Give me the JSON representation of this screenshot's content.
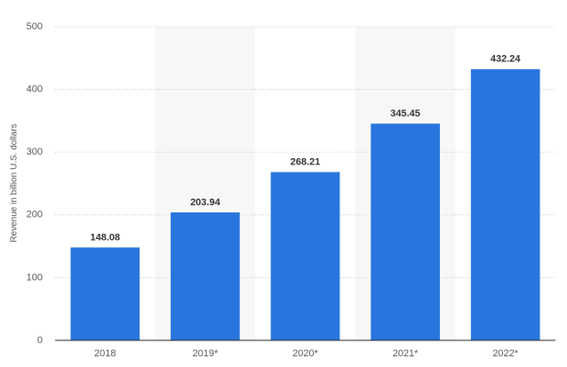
{
  "chart_data": {
    "type": "bar",
    "y_label": "Revenue in billion U.S. dollars",
    "categories": [
      "2018",
      "2019*",
      "2020*",
      "2021*",
      "2022*"
    ],
    "values": [
      148.08,
      203.94,
      268.21,
      345.45,
      432.24
    ],
    "color": "#2876dd",
    "ylim": [
      0,
      500
    ],
    "yticks": [
      0,
      100,
      200,
      300,
      400,
      500
    ],
    "grid": true
  }
}
